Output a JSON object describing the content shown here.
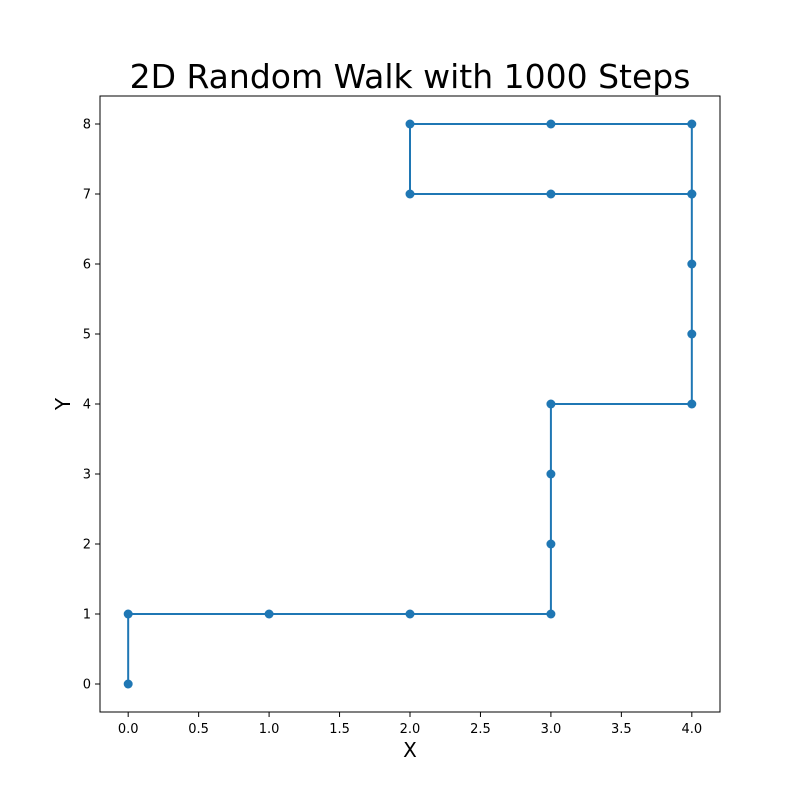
{
  "chart_data": {
    "type": "line",
    "title": "2D Random Walk with 1000 Steps",
    "xlabel": "X",
    "ylabel": "Y",
    "xlim": [
      -0.2,
      4.2
    ],
    "ylim": [
      -0.4,
      8.4
    ],
    "xticks": [
      0.0,
      0.5,
      1.0,
      1.5,
      2.0,
      2.5,
      3.0,
      3.5,
      4.0
    ],
    "xtick_labels": [
      "0.0",
      "0.5",
      "1.0",
      "1.5",
      "2.0",
      "2.5",
      "3.0",
      "3.5",
      "4.0"
    ],
    "yticks": [
      0,
      1,
      2,
      3,
      4,
      5,
      6,
      7,
      8
    ],
    "ytick_labels": [
      "0",
      "1",
      "2",
      "3",
      "4",
      "5",
      "6",
      "7",
      "8"
    ],
    "grid": false,
    "marker": "circle",
    "color": "#1f77b4",
    "series": [
      {
        "x": [
          0,
          0,
          1,
          2,
          3,
          3,
          3,
          3,
          4,
          4,
          4,
          4,
          4,
          3,
          2,
          2,
          3,
          4
        ],
        "y": [
          0,
          1,
          1,
          1,
          1,
          2,
          3,
          4,
          4,
          5,
          6,
          7,
          8,
          8,
          8,
          7,
          7,
          7
        ]
      }
    ]
  }
}
